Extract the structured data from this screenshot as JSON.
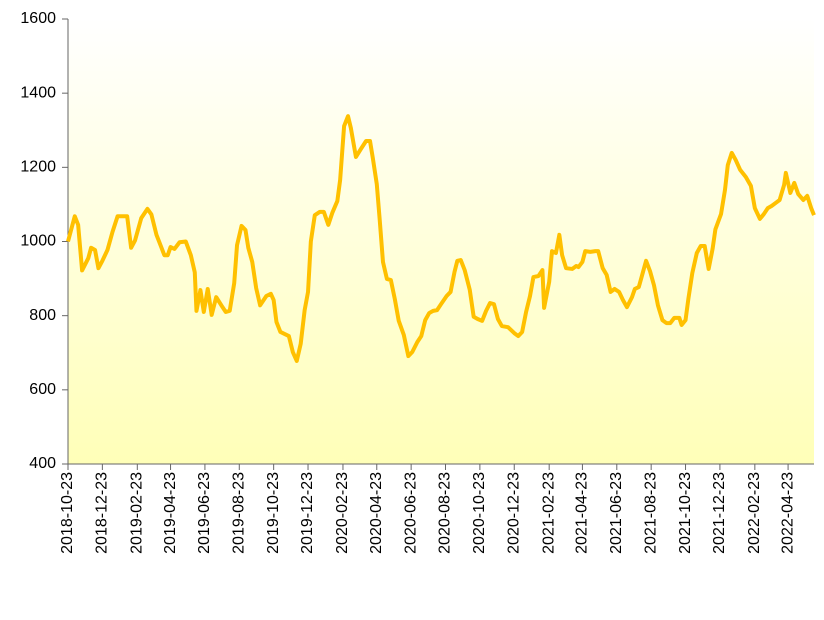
{
  "chart_data": {
    "type": "line",
    "x": [
      "2018-10-23",
      "2018-11-04",
      "2018-11-10",
      "2018-11-17",
      "2018-11-28",
      "2018-12-03",
      "2018-12-10",
      "2018-12-16",
      "2018-12-23",
      "2019-01-01",
      "2019-01-10",
      "2019-01-19",
      "2019-02-05",
      "2019-02-12",
      "2019-02-19",
      "2019-03-02",
      "2019-03-13",
      "2019-03-20",
      "2019-03-29",
      "2019-04-07",
      "2019-04-12",
      "2019-04-18",
      "2019-04-23",
      "2019-04-30",
      "2019-05-09",
      "2019-05-20",
      "2019-05-29",
      "2019-06-05",
      "2019-06-08",
      "2019-06-15",
      "2019-06-21",
      "2019-06-28",
      "2019-07-05",
      "2019-07-13",
      "2019-07-23",
      "2019-07-30",
      "2019-08-06",
      "2019-08-14",
      "2019-08-19",
      "2019-08-27",
      "2019-09-03",
      "2019-09-08",
      "2019-09-15",
      "2019-09-22",
      "2019-09-29",
      "2019-10-10",
      "2019-10-18",
      "2019-10-23",
      "2019-10-28",
      "2019-11-04",
      "2019-11-19",
      "2019-11-26",
      "2019-12-03",
      "2019-12-10",
      "2019-12-17",
      "2019-12-23",
      "2019-12-28",
      "2020-01-04",
      "2020-01-13",
      "2020-01-20",
      "2020-01-28",
      "2020-02-04",
      "2020-02-13",
      "2020-02-18",
      "2020-02-25",
      "2020-03-03",
      "2020-03-08",
      "2020-03-17",
      "2020-03-26",
      "2020-04-04",
      "2020-04-11",
      "2020-04-16",
      "2020-04-23",
      "2020-04-28",
      "2020-05-04",
      "2020-05-11",
      "2020-05-18",
      "2020-05-25",
      "2020-06-01",
      "2020-06-10",
      "2020-06-18",
      "2020-06-25",
      "2020-07-04",
      "2020-07-11",
      "2020-07-18",
      "2020-07-25",
      "2020-08-01",
      "2020-08-08",
      "2020-08-15",
      "2020-08-25",
      "2020-09-01",
      "2020-09-08",
      "2020-09-13",
      "2020-09-19",
      "2020-09-26",
      "2020-10-05",
      "2020-10-12",
      "2020-10-19",
      "2020-10-27",
      "2020-11-03",
      "2020-11-10",
      "2020-11-17",
      "2020-11-24",
      "2020-12-01",
      "2020-12-12",
      "2020-12-23",
      "2020-12-30",
      "2021-01-06",
      "2021-01-13",
      "2021-01-20",
      "2021-01-26",
      "2021-02-04",
      "2021-02-11",
      "2021-02-14",
      "2021-02-23",
      "2021-02-28",
      "2021-03-07",
      "2021-03-13",
      "2021-03-18",
      "2021-03-25",
      "2021-04-05",
      "2021-04-12",
      "2021-04-16",
      "2021-04-23",
      "2021-04-28",
      "2021-05-07",
      "2021-05-16",
      "2021-05-21",
      "2021-05-29",
      "2021-06-05",
      "2021-06-12",
      "2021-06-19",
      "2021-06-27",
      "2021-07-04",
      "2021-07-11",
      "2021-07-20",
      "2021-07-25",
      "2021-08-01",
      "2021-08-06",
      "2021-08-14",
      "2021-08-21",
      "2021-08-28",
      "2021-09-04",
      "2021-09-12",
      "2021-09-19",
      "2021-09-26",
      "2021-10-03",
      "2021-10-12",
      "2021-10-16",
      "2021-10-23",
      "2021-10-28",
      "2021-11-04",
      "2021-11-12",
      "2021-11-19",
      "2021-11-26",
      "2021-12-03",
      "2021-12-10",
      "2021-12-15",
      "2021-12-25",
      "2022-01-01",
      "2022-01-06",
      "2022-01-13",
      "2022-01-20",
      "2022-01-28",
      "2022-02-07",
      "2022-02-16",
      "2022-02-23",
      "2022-03-04",
      "2022-03-11",
      "2022-03-18",
      "2022-03-25",
      "2022-04-01",
      "2022-04-08",
      "2022-04-16",
      "2022-04-19",
      "2022-04-27",
      "2022-05-04",
      "2022-05-11",
      "2022-05-20",
      "2022-05-27",
      "2022-06-03",
      "2022-06-08"
    ],
    "series": [
      {
        "color": "#ffc000",
        "values": [
          1000,
          1068,
          1045,
          922,
          955,
          983,
          977,
          928,
          948,
          977,
          1026,
          1068,
          1068,
          983,
          1003,
          1063,
          1088,
          1073,
          1018,
          983,
          963,
          963,
          985,
          980,
          998,
          1000,
          963,
          917,
          813,
          869,
          810,
          872,
          802,
          850,
          826,
          810,
          813,
          888,
          990,
          1042,
          1031,
          983,
          945,
          874,
          828,
          853,
          859,
          842,
          783,
          756,
          745,
          702,
          678,
          724,
          815,
          864,
          1000,
          1071,
          1080,
          1080,
          1045,
          1077,
          1109,
          1166,
          1311,
          1338,
          1306,
          1228,
          1250,
          1271,
          1271,
          1225,
          1155,
          1063,
          945,
          899,
          896,
          845,
          786,
          748,
          691,
          702,
          729,
          745,
          788,
          807,
          813,
          815,
          831,
          853,
          864,
          918,
          948,
          950,
          923,
          870,
          797,
          791,
          786,
          813,
          834,
          831,
          791,
          772,
          769,
          753,
          745,
          756,
          810,
          853,
          904,
          907,
          923,
          821,
          891,
          974,
          969,
          1018,
          963,
          928,
          926,
          934,
          931,
          945,
          974,
          972,
          974,
          974,
          928,
          910,
          864,
          872,
          864,
          842,
          823,
          850,
          872,
          877,
          904,
          948,
          920,
          882,
          828,
          788,
          780,
          780,
          794,
          794,
          775,
          788,
          845,
          915,
          969,
          988,
          988,
          926,
          980,
          1033,
          1074,
          1139,
          1206,
          1239,
          1220,
          1193,
          1174,
          1150,
          1090,
          1061,
          1074,
          1090,
          1096,
          1104,
          1112,
          1153,
          1185,
          1131,
          1158,
          1128,
          1112,
          1123,
          1090,
          1071
        ]
      }
    ],
    "xlim": [
      "2018-10-23",
      "2022-06-08"
    ],
    "xticks": [
      "2018-10-23",
      "2018-12-23",
      "2019-02-23",
      "2019-04-23",
      "2019-06-23",
      "2019-08-23",
      "2019-10-23",
      "2019-12-23",
      "2020-02-23",
      "2020-04-23",
      "2020-06-23",
      "2020-08-23",
      "2020-10-23",
      "2020-12-23",
      "2021-02-23",
      "2021-04-23",
      "2021-06-23",
      "2021-08-23",
      "2021-10-23",
      "2021-12-23",
      "2022-02-23",
      "2022-04-23"
    ],
    "ylim": [
      400,
      1600
    ],
    "yticks": [
      400,
      600,
      800,
      1000,
      1200,
      1400,
      1600
    ]
  }
}
